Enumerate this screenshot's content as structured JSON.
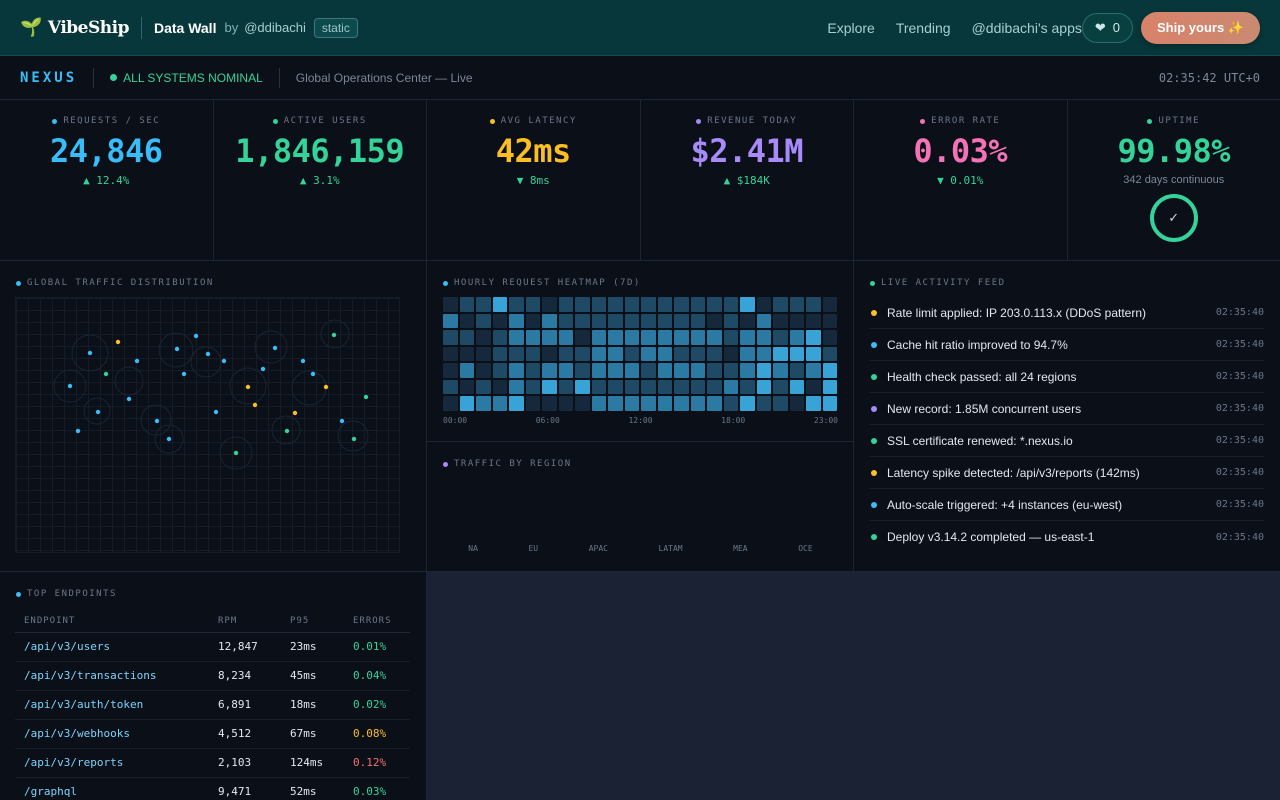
{
  "nav": {
    "brand": "VibeShip",
    "title": "Data Wall",
    "by": "by",
    "user": "@ddibachi",
    "badge": "static",
    "links": [
      "Explore",
      "Trending",
      "@ddibachi's apps"
    ],
    "likes": "0",
    "ship": "Ship yours ✨"
  },
  "status": {
    "name": "NEXUS",
    "state": "ALL SYSTEMS NOMINAL",
    "center": "Global Operations Center — Live",
    "clock": "02:35:42 UTC+0"
  },
  "kpis": [
    {
      "label": "REQUESTS / SEC",
      "value": "24,846",
      "delta": "▲ 12.4%",
      "color": "#38bdf8",
      "delta_color": "#34d399"
    },
    {
      "label": "ACTIVE USERS",
      "value": "1,846,159",
      "delta": "▲ 3.1%",
      "color": "#34d399",
      "delta_color": "#34d399"
    },
    {
      "label": "AVG LATENCY",
      "value": "42ms",
      "delta": "▼ 8ms",
      "color": "#fbbf24",
      "delta_color": "#34d399"
    },
    {
      "label": "REVENUE TODAY",
      "value": "$2.41M",
      "delta": "▲ $184K",
      "color": "#a78bfa",
      "delta_color": "#34d399"
    },
    {
      "label": "ERROR RATE",
      "value": "0.03%",
      "delta": "▼ 0.01%",
      "color": "#f472b6",
      "delta_color": "#34d399"
    },
    {
      "label": "UPTIME",
      "value": "99.98%",
      "sub": "342 days continuous",
      "check": "✓",
      "color": "#34d399"
    }
  ],
  "traffic": {
    "title": "GLOBAL TRAFFIC DISTRIBUTION"
  },
  "heatmap": {
    "title": "HOURLY REQUEST HEATMAP (7D)",
    "x_ticks": [
      "00:00",
      "06:00",
      "12:00",
      "18:00",
      "23:00"
    ],
    "levels": [
      [
        1,
        2,
        2,
        4,
        2,
        2,
        1,
        2,
        2,
        2,
        2,
        2,
        2,
        2,
        2,
        2,
        2,
        2,
        4,
        1,
        2,
        2,
        2,
        1
      ],
      [
        3,
        1,
        2,
        1,
        3,
        1,
        3,
        2,
        2,
        2,
        2,
        2,
        2,
        2,
        2,
        2,
        1,
        2,
        1,
        3,
        1,
        1,
        1,
        1
      ],
      [
        2,
        2,
        1,
        2,
        3,
        3,
        3,
        3,
        1,
        3,
        3,
        3,
        3,
        3,
        3,
        3,
        3,
        2,
        3,
        3,
        2,
        3,
        4,
        1
      ],
      [
        1,
        1,
        1,
        2,
        2,
        2,
        1,
        2,
        2,
        3,
        3,
        2,
        3,
        3,
        2,
        2,
        2,
        1,
        3,
        3,
        4,
        4,
        4,
        2
      ],
      [
        1,
        3,
        1,
        2,
        3,
        2,
        3,
        3,
        2,
        3,
        3,
        3,
        2,
        3,
        3,
        3,
        2,
        2,
        3,
        4,
        3,
        2,
        3,
        4
      ],
      [
        2,
        1,
        2,
        1,
        3,
        2,
        4,
        2,
        4,
        2,
        2,
        2,
        2,
        2,
        2,
        2,
        2,
        3,
        2,
        4,
        2,
        4,
        1,
        4
      ],
      [
        1,
        4,
        3,
        3,
        4,
        1,
        1,
        1,
        1,
        3,
        3,
        3,
        3,
        3,
        3,
        3,
        3,
        2,
        4,
        2,
        2,
        1,
        4,
        4
      ]
    ],
    "palette": [
      "#0f1724",
      "#16293c",
      "#1f4a66",
      "#2b7aa3",
      "#38a3d6"
    ]
  },
  "region": {
    "title": "TRAFFIC BY REGION",
    "labels": [
      "NA",
      "EU",
      "APAC",
      "LATAM",
      "MEA",
      "OCE"
    ]
  },
  "feed": {
    "title": "LIVE ACTIVITY FEED",
    "items": [
      {
        "text": "Rate limit applied: IP 203.0.113.x (DDoS pattern)",
        "time": "02:35:40",
        "color": "#fbbf24"
      },
      {
        "text": "Cache hit ratio improved to 94.7%",
        "time": "02:35:40",
        "color": "#38bdf8"
      },
      {
        "text": "Health check passed: all 24 regions",
        "time": "02:35:40",
        "color": "#34d399"
      },
      {
        "text": "New record: 1.85M concurrent users",
        "time": "02:35:40",
        "color": "#a78bfa"
      },
      {
        "text": "SSL certificate renewed: *.nexus.io",
        "time": "02:35:40",
        "color": "#34d399"
      },
      {
        "text": "Latency spike detected: /api/v3/reports (142ms)",
        "time": "02:35:40",
        "color": "#fbbf24"
      },
      {
        "text": "Auto-scale triggered: +4 instances (eu-west)",
        "time": "02:35:40",
        "color": "#38bdf8"
      },
      {
        "text": "Deploy v3.14.2 completed — us-east-1",
        "time": "02:35:40",
        "color": "#34d399"
      }
    ]
  },
  "endpoints": {
    "title": "TOP ENDPOINTS",
    "headers": [
      "ENDPOINT",
      "RPM",
      "P95",
      "ERRORS"
    ],
    "rows": [
      {
        "path": "/api/v3/users",
        "rpm": "12,847",
        "p95": "23ms",
        "errors": "0.01%",
        "err_color": "#34d399"
      },
      {
        "path": "/api/v3/transactions",
        "rpm": "8,234",
        "p95": "45ms",
        "errors": "0.04%",
        "err_color": "#34d399"
      },
      {
        "path": "/api/v3/auth/token",
        "rpm": "6,891",
        "p95": "18ms",
        "errors": "0.02%",
        "err_color": "#34d399"
      },
      {
        "path": "/api/v3/webhooks",
        "rpm": "4,512",
        "p95": "67ms",
        "errors": "0.08%",
        "err_color": "#fbbf24"
      },
      {
        "path": "/api/v3/reports",
        "rpm": "2,103",
        "p95": "124ms",
        "errors": "0.12%",
        "err_color": "#f87171"
      },
      {
        "path": "/graphql",
        "rpm": "9,471",
        "p95": "52ms",
        "errors": "0.03%",
        "err_color": "#34d399"
      }
    ]
  }
}
